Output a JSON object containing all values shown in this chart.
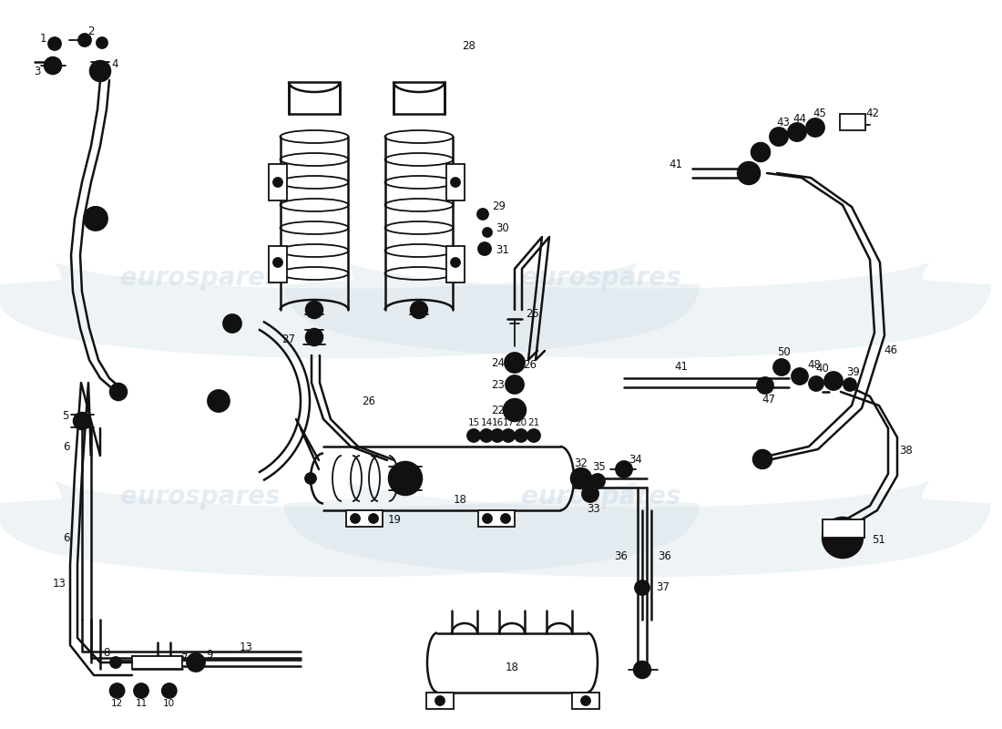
{
  "bg_color": "#ffffff",
  "line_color": "#111111",
  "watermark_color": "#d0dde8",
  "watermark_text": "eurospares",
  "fig_width": 11.0,
  "fig_height": 8.0,
  "dpi": 100,
  "lw_main": 1.8,
  "lw_thin": 1.3,
  "lw_thick": 2.5,
  "fs": 8.5
}
